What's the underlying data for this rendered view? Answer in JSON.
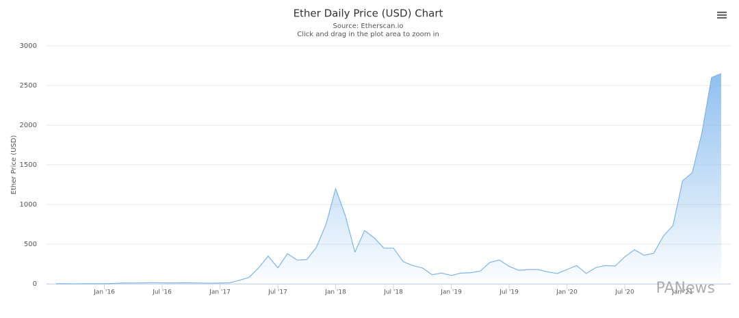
{
  "chart_data": {
    "type": "area",
    "title": "Ether Daily Price (USD) Chart",
    "subtitle": [
      "Source: Etherscan.io",
      "Click and drag in the plot area to zoom in"
    ],
    "y_label": "Ether Price (USD)",
    "color": "#7cb5ec",
    "grid": true,
    "x": [
      "2015-08",
      "2015-09",
      "2015-10",
      "2015-11",
      "2015-12",
      "2016-01",
      "2016-02",
      "2016-03",
      "2016-04",
      "2016-05",
      "2016-06",
      "2016-07",
      "2016-08",
      "2016-09",
      "2016-10",
      "2016-11",
      "2016-12",
      "2017-01",
      "2017-02",
      "2017-03",
      "2017-04",
      "2017-05",
      "2017-06",
      "2017-07",
      "2017-08",
      "2017-09",
      "2017-10",
      "2017-11",
      "2017-12",
      "2018-01",
      "2018-02",
      "2018-03",
      "2018-04",
      "2018-05",
      "2018-06",
      "2018-07",
      "2018-08",
      "2018-09",
      "2018-10",
      "2018-11",
      "2018-12",
      "2019-01",
      "2019-02",
      "2019-03",
      "2019-04",
      "2019-05",
      "2019-06",
      "2019-07",
      "2019-08",
      "2019-09",
      "2019-10",
      "2019-11",
      "2019-12",
      "2020-01",
      "2020-02",
      "2020-03",
      "2020-04",
      "2020-05",
      "2020-06",
      "2020-07",
      "2020-08",
      "2020-09",
      "2020-10",
      "2020-11",
      "2020-12",
      "2021-01",
      "2021-02",
      "2021-03",
      "2021-04",
      "2021-05"
    ],
    "values": [
      1,
      1,
      0.6,
      0.9,
      0.9,
      1,
      5,
      11,
      9,
      12,
      14,
      12,
      11,
      13,
      12,
      9,
      8,
      10,
      13,
      45,
      80,
      200,
      350,
      200,
      380,
      300,
      305,
      460,
      750,
      1200,
      860,
      400,
      670,
      580,
      450,
      450,
      280,
      230,
      200,
      115,
      135,
      105,
      135,
      140,
      160,
      270,
      300,
      220,
      170,
      180,
      180,
      150,
      130,
      180,
      230,
      130,
      205,
      230,
      225,
      340,
      430,
      360,
      385,
      600,
      735,
      1300,
      1400,
      1900,
      2600,
      2650
    ],
    "xlim": [
      "2015-07",
      "2021-06"
    ],
    "xticks": [
      {
        "value": "2016-01",
        "label": "Jan '16"
      },
      {
        "value": "2016-07",
        "label": "Jul '16"
      },
      {
        "value": "2017-01",
        "label": "Jan '17"
      },
      {
        "value": "2017-07",
        "label": "Jul '17"
      },
      {
        "value": "2018-01",
        "label": "Jan '18"
      },
      {
        "value": "2018-07",
        "label": "Jul '18"
      },
      {
        "value": "2019-01",
        "label": "Jan '19"
      },
      {
        "value": "2019-07",
        "label": "Jul '19"
      },
      {
        "value": "2020-01",
        "label": "Jan '20"
      },
      {
        "value": "2020-07",
        "label": "Jul '20"
      },
      {
        "value": "2021-01",
        "label": "Jan '21"
      }
    ],
    "ylim": [
      0,
      3000
    ],
    "yticks": [
      0,
      500,
      1000,
      1500,
      2000,
      2500,
      3000
    ]
  },
  "watermark": "PANews"
}
